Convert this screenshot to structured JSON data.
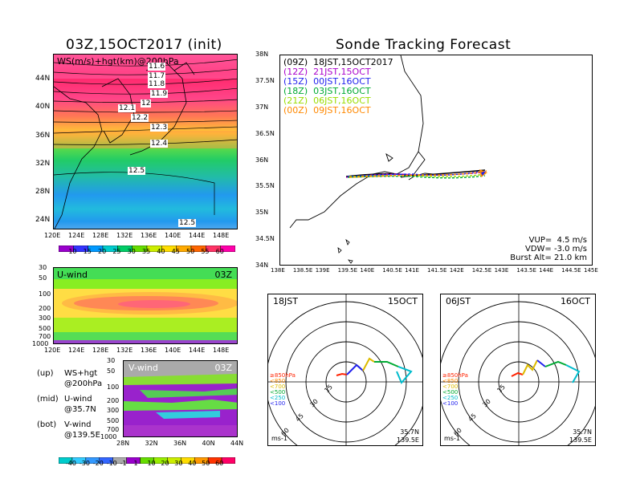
{
  "left_title": "03Z,15OCT2017 (init)",
  "right_title": "Sonde Tracking Forecast",
  "map_panel": {
    "label": "WS(m/s)+hgt(km)@200hPa",
    "lat_ticks": [
      "44N",
      "40N",
      "36N",
      "32N",
      "28N",
      "24N"
    ],
    "lon_ticks": [
      "120E",
      "124E",
      "128E",
      "132E",
      "136E",
      "140E",
      "144E",
      "148E"
    ],
    "contour_labels": [
      "11.6",
      "11.7",
      "11.8",
      "11.9",
      "12",
      "12.1",
      "12.2",
      "12.3",
      "12.4",
      "12.5",
      "12.5"
    ],
    "colorbar_ticks": [
      "10",
      "15",
      "20",
      "25",
      "30",
      "35",
      "40",
      "45",
      "50",
      "55",
      "60"
    ],
    "colorbar_colors": [
      "#9900cc",
      "#3333ff",
      "#0099ff",
      "#00cccc",
      "#00cc66",
      "#66dd00",
      "#ccee00",
      "#ffdd00",
      "#ffaa00",
      "#ff6600",
      "#ff3366",
      "#ff00aa"
    ]
  },
  "uwind_panel": {
    "label": "U-wind",
    "time": "03Z",
    "p_ticks": [
      "30",
      "50",
      "100",
      "200",
      "300",
      "500",
      "700",
      "1000"
    ],
    "lon_ticks": [
      "120E",
      "124E",
      "128E",
      "132E",
      "136E",
      "140E",
      "144E",
      "148E"
    ]
  },
  "vwind_panel": {
    "label": "V-wind",
    "time": "03Z",
    "p_ticks": [
      "30",
      "50",
      "100",
      "200",
      "300",
      "500",
      "700",
      "1000"
    ],
    "lat_ticks": [
      "28N",
      "32N",
      "36N",
      "40N",
      "44N"
    ],
    "colorbar_ticks": [
      "-40",
      "-30",
      "-20",
      "-10",
      "-1",
      "1",
      "10",
      "20",
      "30",
      "40",
      "50",
      "60"
    ],
    "colorbar_colors": [
      "#00cccc",
      "#33ccff",
      "#3399ff",
      "#3366ff",
      "#aaaaaa",
      "#9900cc",
      "#66dd00",
      "#99ee00",
      "#ccee00",
      "#ffdd00",
      "#ff9900",
      "#ff3300",
      "#ff0066"
    ]
  },
  "notes": [
    {
      "a": "(up)",
      "b": "WS+hgt",
      "c": "@200hPa"
    },
    {
      "a": "(mid)",
      "b": "U-wind",
      "c": "@35.7N"
    },
    {
      "a": "(bot)",
      "b": "V-wind",
      "c": "@139.5E"
    }
  ],
  "track_panel": {
    "lat_ticks": [
      "38N",
      "37.5N",
      "37N",
      "36.5N",
      "36N",
      "35.5N",
      "35N",
      "34.5N",
      "34N"
    ],
    "lon_ticks": [
      "138E",
      "138.5E",
      "139E",
      "139.5E",
      "140E",
      "140.5E",
      "141E",
      "141.5E",
      "142E",
      "142.5E",
      "143E",
      "143.5E",
      "144E",
      "144.5E",
      "145E"
    ],
    "legend": [
      {
        "text": "(09Z)  18JST,15OCT2017",
        "color": "#000000"
      },
      {
        "text": "(12Z)  21JST,15OCT",
        "color": "#aa00cc"
      },
      {
        "text": "(15Z)  00JST,16OCT",
        "color": "#2222ee"
      },
      {
        "text": "(18Z)  03JST,16OCT",
        "color": "#00aa33"
      },
      {
        "text": "(21Z)  06JST,16OCT",
        "color": "#99dd00"
      },
      {
        "text": "(00Z)  09JST,16OCT",
        "color": "#ff8800"
      }
    ],
    "params": [
      "VUP=  4.5 m/s",
      "VDW= -3.0 m/s",
      "Burst Alt= 21.0 km"
    ]
  },
  "hodo_left": {
    "time": "18JST",
    "date": "15OCT",
    "rings": [
      "15",
      "30",
      "45",
      "60"
    ],
    "pressure_levels": [
      {
        "text": "≥850hPa",
        "color": "#ff2200"
      },
      {
        "text": "<850",
        "color": "#ff8800"
      },
      {
        "text": "<700",
        "color": "#ddbb00"
      },
      {
        "text": "<500",
        "color": "#00aa33"
      },
      {
        "text": "<250",
        "color": "#00bbcc"
      },
      {
        "text": "<100",
        "color": "#2222ee"
      }
    ],
    "units": "ms-1",
    "loc1": "35.7N",
    "loc2": "139.5E"
  },
  "hodo_right": {
    "time": "06JST",
    "date": "16OCT",
    "rings": [
      "15",
      "30",
      "45",
      "60"
    ],
    "pressure_levels": [
      {
        "text": "≥850hPa",
        "color": "#ff2200"
      },
      {
        "text": "<850",
        "color": "#ff8800"
      },
      {
        "text": "<700",
        "color": "#ddbb00"
      },
      {
        "text": "<500",
        "color": "#00aa33"
      },
      {
        "text": "<250",
        "color": "#00bbcc"
      },
      {
        "text": "<100",
        "color": "#2222ee"
      }
    ],
    "units": "ms-1",
    "loc1": "35.7N",
    "loc2": "139.5E"
  }
}
